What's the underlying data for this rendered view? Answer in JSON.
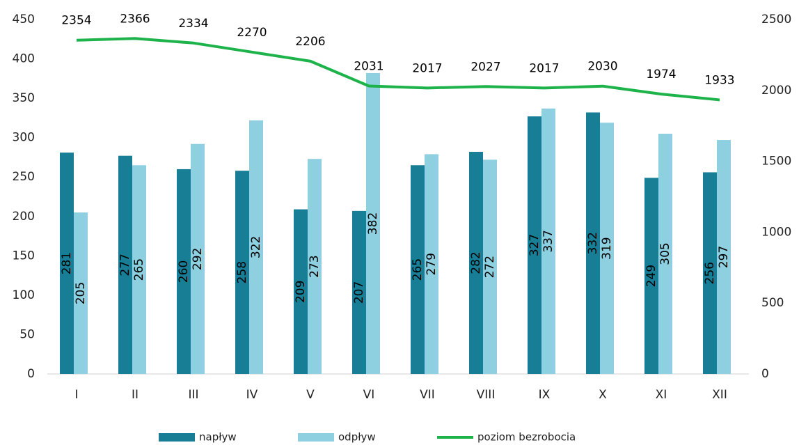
{
  "chart_data": {
    "type": "bar",
    "categories": [
      "I",
      "II",
      "III",
      "IV",
      "V",
      "VI",
      "VII",
      "VIII",
      "IX",
      "X",
      "XI",
      "XII"
    ],
    "series": [
      {
        "name": "napływ",
        "color": "#177e96",
        "values": [
          281,
          277,
          260,
          258,
          209,
          207,
          265,
          282,
          327,
          332,
          249,
          256
        ]
      },
      {
        "name": "odpływ",
        "color": "#8ecfe0",
        "values": [
          205,
          265,
          292,
          322,
          273,
          382,
          279,
          272,
          337,
          319,
          305,
          297
        ]
      },
      {
        "name": "poziom bezrobocia",
        "color": "#1db34a",
        "type": "line",
        "axis": "y2",
        "values": [
          2354,
          2366,
          2334,
          2270,
          2206,
          2031,
          2017,
          2027,
          2017,
          2030,
          1974,
          1933
        ]
      }
    ],
    "ylim": [
      0,
      450
    ],
    "yticks": [
      0,
      50,
      100,
      150,
      200,
      250,
      300,
      350,
      400,
      450
    ],
    "y2lim": [
      0,
      2500
    ],
    "y2ticks": [
      0,
      500,
      1000,
      1500,
      2000,
      2500
    ],
    "grid": false,
    "legend": "bottom"
  }
}
